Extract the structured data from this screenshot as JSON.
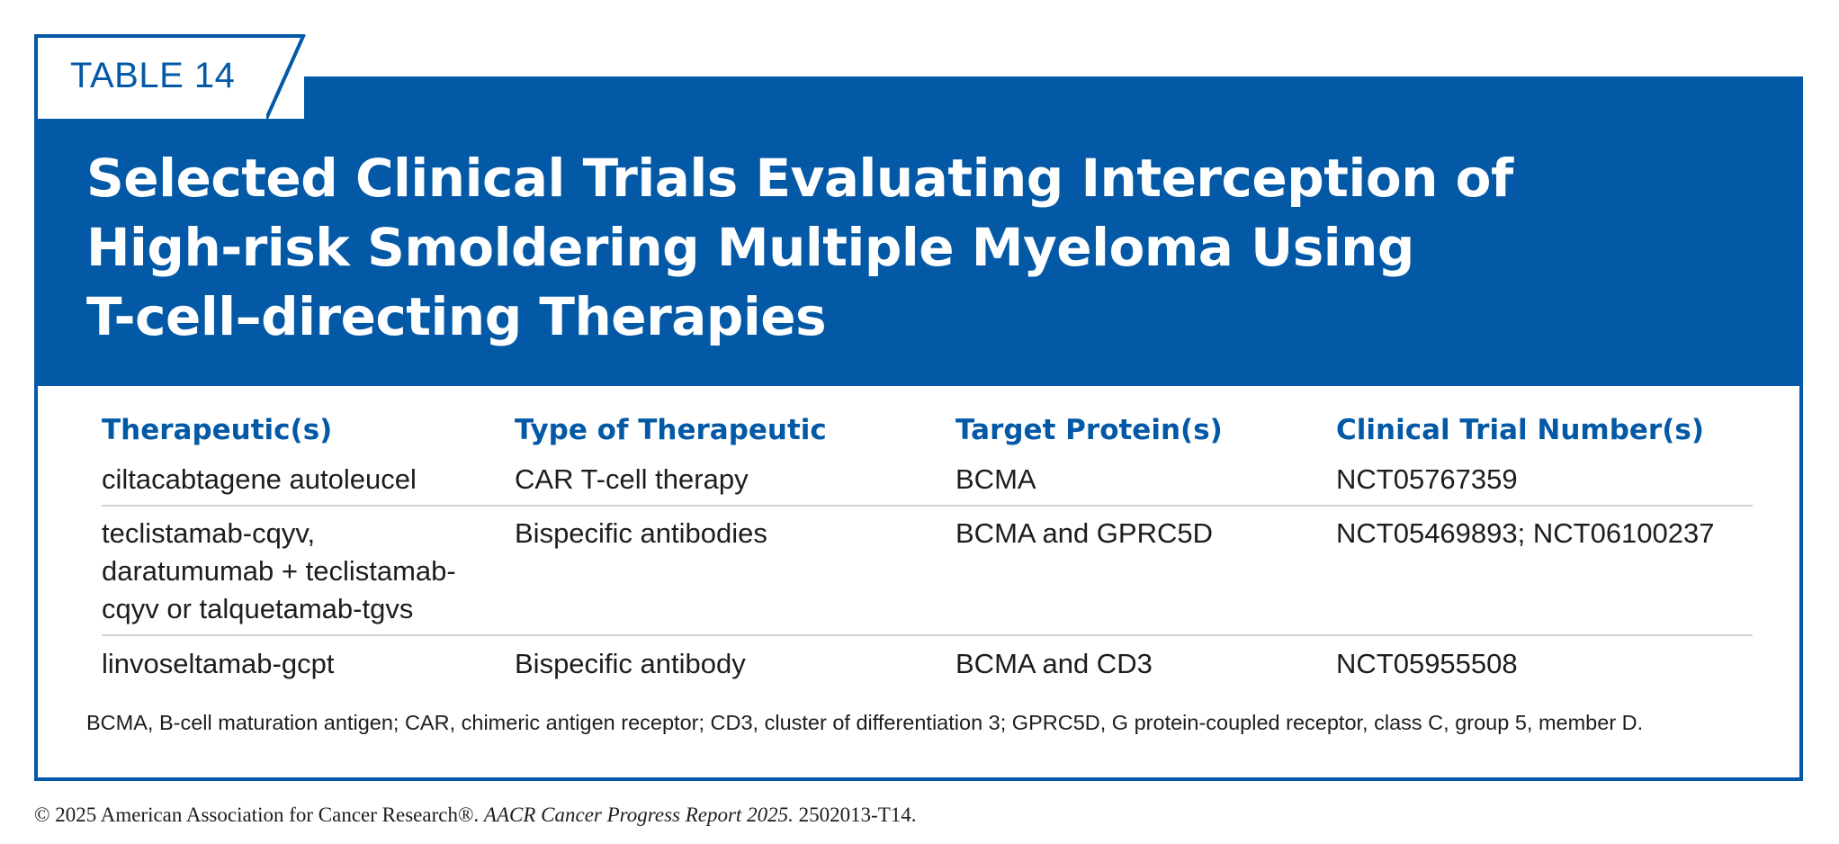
{
  "tag": "TABLE 14",
  "title_lines": [
    "Selected Clinical Trials Evaluating Interception of",
    "High-risk Smoldering Multiple Myeloma Using",
    "T-cell–directing Therapies"
  ],
  "columns": [
    "Therapeutic(s)",
    "Type of Therapeutic",
    "Target Protein(s)",
    "Clinical Trial Number(s)"
  ],
  "rows": [
    {
      "therapeutic": [
        "ciltacabtagene autoleucel"
      ],
      "type": "CAR T-cell therapy",
      "target": "BCMA",
      "trials": "NCT05767359"
    },
    {
      "therapeutic": [
        "teclistamab-cqyv,",
        "daratumumab + teclistamab-",
        "cqyv or talquetamab-tgvs"
      ],
      "type": "Bispecific antibodies",
      "target": "BCMA and GPRC5D",
      "trials": "NCT05469893; NCT06100237"
    },
    {
      "therapeutic": [
        "linvoseltamab-gcpt"
      ],
      "type": "Bispecific antibody",
      "target": "BCMA and CD3",
      "trials": "NCT05955508"
    }
  ],
  "footnote": "BCMA, B-cell maturation antigen; CAR, chimeric antigen receptor; CD3, cluster of differentiation 3; GPRC5D, G protein-coupled receptor, class C, group 5, member D.",
  "copyright": {
    "prefix": "© 2025 American Association for Cancer Research®. ",
    "report": "AACR Cancer Progress Report 2025.",
    "suffix": " 2502013-T14."
  },
  "colors": {
    "brand_blue": "#0359a6",
    "rule_gray": "#cfd3d8",
    "text": "#1d1d1d"
  }
}
